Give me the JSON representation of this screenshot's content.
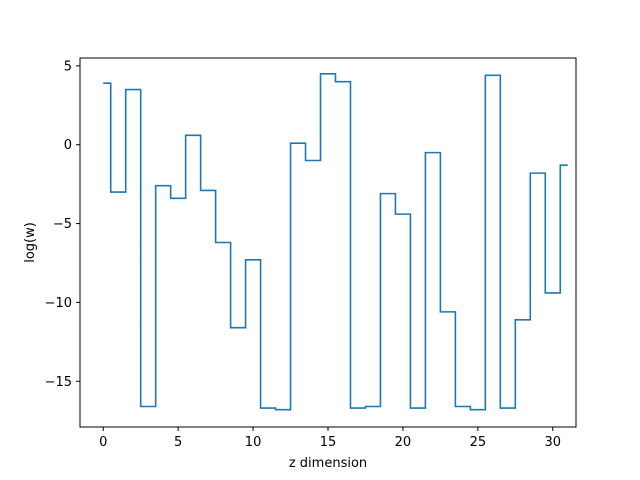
{
  "chart_data": {
    "type": "line",
    "drawstyle": "steps-mid",
    "xlabel": "z dimension",
    "ylabel": "log(w)",
    "xlim": [
      -1.55,
      31.55
    ],
    "ylim": [
      -17.9,
      5.5
    ],
    "xticks": [
      0,
      5,
      10,
      15,
      20,
      25,
      30
    ],
    "yticks": [
      5,
      0,
      -5,
      -10,
      -15
    ],
    "ytick_labels": [
      "5",
      "0",
      "−5",
      "−10",
      "−15"
    ],
    "grid": false,
    "line_color": "#1f77b4",
    "series": [
      {
        "x": [
          0,
          1,
          2,
          3,
          4,
          5,
          6,
          7,
          8,
          9,
          10,
          11,
          12,
          13,
          14,
          15,
          16,
          17,
          18,
          19,
          20,
          21,
          22,
          23,
          24,
          25,
          26,
          27,
          28,
          29,
          30,
          31
        ],
        "values": [
          3.9,
          -3.0,
          3.5,
          -16.6,
          -2.6,
          -3.4,
          0.6,
          -2.9,
          -6.2,
          -11.6,
          -7.3,
          -16.7,
          -16.8,
          0.1,
          -1.0,
          4.5,
          4.0,
          -16.7,
          -16.6,
          -3.1,
          -4.4,
          -16.7,
          -0.5,
          -10.6,
          -16.6,
          -16.8,
          4.4,
          -16.7,
          -11.1,
          -1.8,
          -9.4,
          -1.3
        ]
      }
    ]
  }
}
